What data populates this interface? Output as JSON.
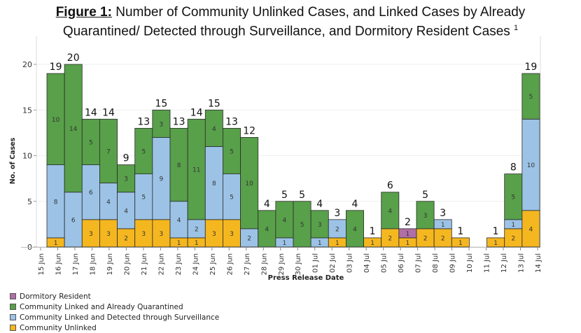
{
  "title": {
    "prefix": "Figure 1:",
    "line1": " Number of Community Unlinked Cases, and Linked Cases by Already",
    "line2": "Quarantined/ Detected through Surveillance, and Dormitory Resident Cases",
    "footnote": "1"
  },
  "chart_data": {
    "type": "bar",
    "stacked": true,
    "title": "Number of Community Unlinked Cases, and Linked Cases by Already Quarantined/ Detected through Surveillance, and Dormitory Resident Cases",
    "xlabel": "Press Release Date",
    "ylabel": "No. of Cases",
    "ylim": [
      0,
      23
    ],
    "yticks": [
      0,
      5,
      10,
      15,
      20
    ],
    "grid": true,
    "legend_position": "bottom-left",
    "tick_labels": [
      "15 Jun",
      "16 Jun",
      "17 Jun",
      "18 Jun",
      "19 Jun",
      "20 Jun",
      "21 Jun",
      "22 Jun",
      "23 Jun",
      "24 Jun",
      "25 Jun",
      "26 Jun",
      "27 Jun",
      "28 Jun",
      "29 Jun",
      "30 Jun",
      "01 Jul",
      "02 Jul",
      "03 Jul",
      "04 Jul",
      "05 Jul",
      "06 Jul",
      "07 Jul",
      "08 Jul",
      "09 Jul",
      "10 Jul",
      "11 Jul",
      "12 Jul",
      "13 Jul",
      "14 Jul"
    ],
    "categories": [
      "16 Jun",
      "17 Jun",
      "18 Jun",
      "19 Jun",
      "20 Jun",
      "21 Jun",
      "22 Jun",
      "23 Jun",
      "24 Jun",
      "25 Jun",
      "26 Jun",
      "27 Jun",
      "28 Jun",
      "29 Jun",
      "30 Jun",
      "01 Jul",
      "02 Jul",
      "03 Jul",
      "04 Jul",
      "05 Jul",
      "06 Jul",
      "07 Jul",
      "08 Jul",
      "09 Jul",
      "10 Jul",
      "11 Jul",
      "12 Jul",
      "13 Jul"
    ],
    "series": [
      {
        "name": "Community Unlinked",
        "color": "#f5b71f",
        "values": [
          1,
          0,
          3,
          3,
          2,
          3,
          3,
          1,
          1,
          3,
          3,
          0,
          0,
          0,
          0,
          0,
          1,
          0,
          1,
          2,
          1,
          2,
          2,
          1,
          0,
          1,
          2,
          4
        ]
      },
      {
        "name": "Community Linked and Detected through Surveillance",
        "color": "#9cc3e6",
        "values": [
          8,
          6,
          6,
          4,
          4,
          5,
          9,
          4,
          2,
          8,
          5,
          2,
          0,
          1,
          0,
          1,
          2,
          0,
          0,
          0,
          0,
          0,
          1,
          0,
          0,
          0,
          1,
          10
        ]
      },
      {
        "name": "Community Linked and Already Quarantined",
        "color": "#58a04a",
        "values": [
          10,
          14,
          5,
          7,
          3,
          5,
          3,
          8,
          11,
          4,
          5,
          10,
          4,
          4,
          5,
          3,
          0,
          4,
          0,
          4,
          0,
          3,
          0,
          0,
          0,
          0,
          5,
          5
        ]
      },
      {
        "name": "Dormitory Resident",
        "color": "#b06fa6",
        "values": [
          0,
          0,
          0,
          0,
          0,
          0,
          0,
          0,
          0,
          0,
          0,
          0,
          0,
          0,
          0,
          0,
          0,
          0,
          0,
          0,
          1,
          0,
          0,
          0,
          0,
          0,
          0,
          0
        ]
      }
    ],
    "totals": [
      19,
      20,
      14,
      14,
      9,
      13,
      15,
      13,
      14,
      15,
      13,
      12,
      4,
      5,
      5,
      4,
      3,
      4,
      1,
      6,
      2,
      5,
      3,
      1,
      0,
      1,
      8,
      19
    ]
  },
  "legend": [
    {
      "label": "Dormitory Resident",
      "color": "#b06fa6"
    },
    {
      "label": "Community Linked and Already Quarantined",
      "color": "#58a04a"
    },
    {
      "label": "Community Linked and Detected through Surveillance",
      "color": "#9cc3e6"
    },
    {
      "label": "Community Unlinked",
      "color": "#f5b71f"
    }
  ]
}
